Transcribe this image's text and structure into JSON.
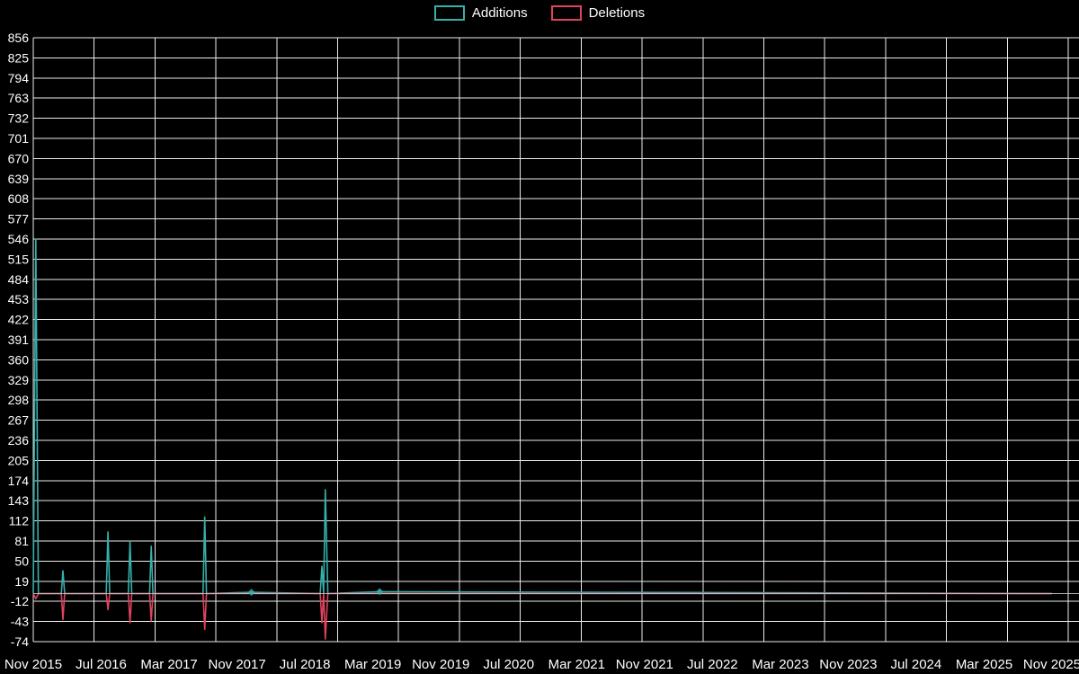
{
  "colors": {
    "background": "#000000",
    "grid": "#ffffff",
    "text": "#ffffff",
    "zero_line": "#c9ccd1",
    "additions": "#35b0ab",
    "deletions": "#e0435e"
  },
  "legend": {
    "items": [
      {
        "label": "Additions",
        "color": "#35b0ab"
      },
      {
        "label": "Deletions",
        "color": "#e0435e"
      }
    ]
  },
  "chart_data": {
    "type": "line",
    "title": "",
    "xlabel": "",
    "ylabel": "",
    "x_unit": "months_since_start",
    "x_start": "Nov 2015",
    "x_range_months": [
      0,
      120
    ],
    "x_tick_interval_months": 8,
    "x_tick_labels": [
      "Nov 2015",
      "Jul 2016",
      "Mar 2017",
      "Nov 2017",
      "Jul 2018",
      "Mar 2019",
      "Nov 2019",
      "Jul 2020",
      "Mar 2021",
      "Nov 2021",
      "Jul 2022",
      "Mar 2023",
      "Nov 2023",
      "Jul 2024",
      "Mar 2025",
      "Nov 2025"
    ],
    "y_ticks": [
      856,
      825,
      794,
      763,
      732,
      701,
      670,
      639,
      608,
      577,
      546,
      515,
      484,
      453,
      422,
      391,
      360,
      329,
      298,
      267,
      236,
      205,
      174,
      143,
      112,
      81,
      50,
      19,
      -12,
      -43,
      -74
    ],
    "ylim": [
      -74,
      856
    ],
    "grid": {
      "horizontal_lines": 31,
      "vertical_lines": 18,
      "visible": true
    },
    "legend_position": "top-center",
    "series": [
      {
        "name": "Additions",
        "color": "#35b0ab",
        "points": [
          [
            0,
            0
          ],
          [
            0.3,
            546
          ],
          [
            0.6,
            0
          ],
          [
            3.3,
            0
          ],
          [
            3.5,
            35
          ],
          [
            3.7,
            0
          ],
          [
            8.6,
            0
          ],
          [
            8.8,
            95
          ],
          [
            9.0,
            0
          ],
          [
            11.2,
            0
          ],
          [
            11.4,
            80
          ],
          [
            11.6,
            0
          ],
          [
            13.7,
            0
          ],
          [
            13.9,
            73
          ],
          [
            14.1,
            0
          ],
          [
            20.0,
            0
          ],
          [
            20.2,
            118
          ],
          [
            20.4,
            0
          ],
          [
            25.7,
            2
          ],
          [
            33.8,
            0
          ],
          [
            34.0,
            42
          ],
          [
            34.2,
            0
          ],
          [
            34.4,
            160
          ],
          [
            34.7,
            0
          ],
          [
            40.8,
            3
          ],
          [
            120,
            0
          ]
        ]
      },
      {
        "name": "Deletions",
        "color": "#e0435e",
        "points": [
          [
            0,
            0
          ],
          [
            0.3,
            -8
          ],
          [
            0.6,
            0
          ],
          [
            3.3,
            0
          ],
          [
            3.5,
            -40
          ],
          [
            3.7,
            0
          ],
          [
            8.6,
            0
          ],
          [
            8.8,
            -25
          ],
          [
            9.0,
            0
          ],
          [
            11.2,
            0
          ],
          [
            11.4,
            -45
          ],
          [
            11.6,
            0
          ],
          [
            13.7,
            0
          ],
          [
            13.9,
            -42
          ],
          [
            14.1,
            0
          ],
          [
            20.0,
            0
          ],
          [
            20.2,
            -55
          ],
          [
            20.4,
            0
          ],
          [
            33.8,
            0
          ],
          [
            34.0,
            -45
          ],
          [
            34.2,
            0
          ],
          [
            34.4,
            -70
          ],
          [
            34.7,
            0
          ],
          [
            120,
            0
          ]
        ]
      }
    ],
    "markers": [
      {
        "series": "Additions",
        "x": 25.7,
        "y": 2
      },
      {
        "series": "Additions",
        "x": 40.8,
        "y": 3
      }
    ]
  }
}
